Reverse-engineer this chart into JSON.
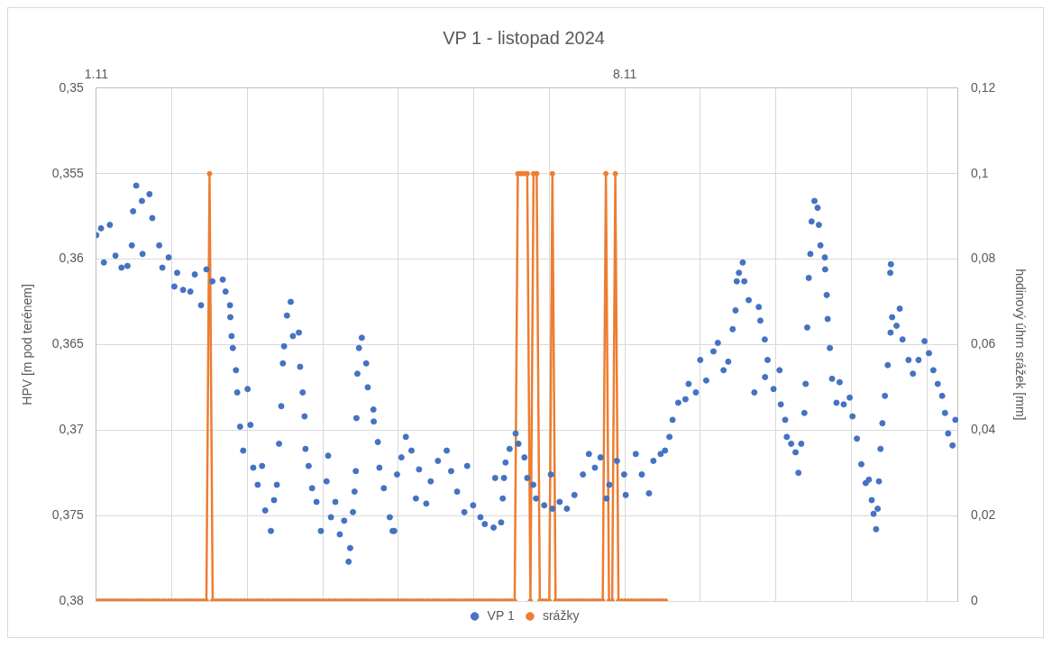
{
  "chart_data": {
    "type": "scatter",
    "title": "VP 1 - listopad 2024",
    "ylabel": "HPV [m pod terénem]",
    "y2label": "hodinový úhrn srážek [mm]",
    "xlim": [
      "2024-11-01T00:00",
      "2024-11-12T10:00"
    ],
    "xticks": [
      {
        "value": "2024-11-01",
        "label": "1.11"
      },
      {
        "value": "2024-11-02",
        "label": null
      },
      {
        "value": "2024-11-03",
        "label": null
      },
      {
        "value": "2024-11-04",
        "label": null
      },
      {
        "value": "2024-11-05",
        "label": null
      },
      {
        "value": "2024-11-06",
        "label": null
      },
      {
        "value": "2024-11-07",
        "label": null
      },
      {
        "value": "2024-11-08",
        "label": "8.11"
      },
      {
        "value": "2024-11-09",
        "label": null
      },
      {
        "value": "2024-11-10",
        "label": null
      },
      {
        "value": "2024-11-11",
        "label": null
      },
      {
        "value": "2024-11-12",
        "label": null
      }
    ],
    "ylim": [
      0.38,
      0.35
    ],
    "yticks": [
      {
        "value": 0.35,
        "label": "0,35"
      },
      {
        "value": 0.355,
        "label": "0,355"
      },
      {
        "value": 0.36,
        "label": "0,36"
      },
      {
        "value": 0.365,
        "label": "0,365"
      },
      {
        "value": 0.37,
        "label": "0,37"
      },
      {
        "value": 0.375,
        "label": "0,375"
      },
      {
        "value": 0.38,
        "label": "0,38"
      }
    ],
    "y2lim": [
      0,
      0.12
    ],
    "y2ticks": [
      0,
      {
        "value": 0.02,
        "label": "0,02"
      },
      {
        "value": 0.04,
        "label": "0,04"
      },
      {
        "value": 0.06,
        "label": "0,06"
      },
      {
        "value": 0.08,
        "label": "0,08"
      },
      {
        "value": 0.1,
        "label": "0,1"
      },
      {
        "value": 0.12,
        "label": "0,12"
      }
    ],
    "grid": true,
    "legend": "bottom",
    "series": [
      {
        "name": "VP 1",
        "type": "scatter",
        "color": "#4472c4",
        "marker": "circle",
        "x": [
          "2024-11-01T00:00",
          "2024-11-01T01:30",
          "2024-11-01T02:24",
          "2024-11-01T04:18",
          "2024-11-01T06:06",
          "2024-11-01T08:00",
          "2024-11-01T09:54",
          "2024-11-01T11:18",
          "2024-11-01T11:42",
          "2024-11-01T12:42",
          "2024-11-01T14:30",
          "2024-11-01T14:42",
          "2024-11-01T16:54",
          "2024-11-01T17:48",
          "2024-11-01T20:00",
          "2024-11-01T21:00",
          "2024-11-01T23:00",
          "2024-11-02T00:48",
          "2024-11-02T01:42",
          "2024-11-02T03:36",
          "2024-11-02T05:54",
          "2024-11-02T07:18",
          "2024-11-02T09:18",
          "2024-11-02T11:00",
          "2024-11-02T12:54",
          "2024-11-02T16:12",
          "2024-11-02T17:06",
          "2024-11-02T18:30",
          "2024-11-02T18:36",
          "2024-11-02T19:00",
          "2024-11-02T19:24",
          "2024-11-02T20:24",
          "2024-11-02T20:48",
          "2024-11-02T21:42",
          "2024-11-02T22:42",
          "2024-11-03T00:06",
          "2024-11-03T01:00",
          "2024-11-03T01:54",
          "2024-11-03T03:18",
          "2024-11-03T04:42",
          "2024-11-03T05:42",
          "2024-11-03T07:30",
          "2024-11-03T08:30",
          "2024-11-03T09:24",
          "2024-11-03T10:06",
          "2024-11-03T10:48",
          "2024-11-03T11:18",
          "2024-11-03T11:42",
          "2024-11-03T12:36",
          "2024-11-03T13:48",
          "2024-11-03T14:30",
          "2024-11-03T16:24",
          "2024-11-03T16:48",
          "2024-11-03T17:36",
          "2024-11-03T18:12",
          "2024-11-03T18:30",
          "2024-11-03T19:30",
          "2024-11-03T20:36",
          "2024-11-03T22:00",
          "2024-11-03T23:24",
          "2024-11-04T01:12",
          "2024-11-04T01:42",
          "2024-11-04T02:36",
          "2024-11-04T04:00",
          "2024-11-04T05:24",
          "2024-11-04T06:48",
          "2024-11-04T08:12",
          "2024-11-04T08:42",
          "2024-11-04T09:36",
          "2024-11-04T10:06",
          "2024-11-04T10:30",
          "2024-11-04T10:42",
          "2024-11-04T11:00",
          "2024-11-04T11:30",
          "2024-11-04T12:24",
          "2024-11-04T13:48",
          "2024-11-04T14:18",
          "2024-11-04T16:06",
          "2024-11-04T16:12",
          "2024-11-04T17:30",
          "2024-11-04T18:00",
          "2024-11-04T19:24",
          "2024-11-04T21:18",
          "2024-11-04T22:12",
          "2024-11-04T22:42",
          "2024-11-04T23:36",
          "2024-11-05T01:00",
          "2024-11-05T02:24",
          "2024-11-05T04:12",
          "2024-11-05T05:36",
          "2024-11-05T06:36",
          "2024-11-05T08:54",
          "2024-11-05T10:18",
          "2024-11-05T12:36",
          "2024-11-05T15:24",
          "2024-11-05T16:48",
          "2024-11-05T18:42",
          "2024-11-05T21:00",
          "2024-11-05T21:54",
          "2024-11-05T23:48",
          "2024-11-06T02:06",
          "2024-11-06T03:30",
          "2024-11-06T06:18",
          "2024-11-06T06:48",
          "2024-11-06T08:42",
          "2024-11-06T09:12",
          "2024-11-06T09:36",
          "2024-11-06T10:06",
          "2024-11-06T11:24",
          "2024-11-06T13:18",
          "2024-11-06T14:12",
          "2024-11-06T16:06",
          "2024-11-06T17:00",
          "2024-11-06T18:54",
          "2024-11-06T19:48",
          "2024-11-06T22:24",
          "2024-11-07T00:30",
          "2024-11-07T01:00",
          "2024-11-07T03:18",
          "2024-11-07T05:36",
          "2024-11-07T08:00",
          "2024-11-07T10:42",
          "2024-11-07T12:36",
          "2024-11-07T14:30",
          "2024-11-07T16:18",
          "2024-11-07T18:12",
          "2024-11-07T19:06",
          "2024-11-07T21:30",
          "2024-11-07T23:48",
          "2024-11-08T00:18",
          "2024-11-08T03:30",
          "2024-11-08T05:24",
          "2024-11-08T07:42",
          "2024-11-08T09:06",
          "2024-11-08T11:24",
          "2024-11-08T12:48",
          "2024-11-08T14:12",
          "2024-11-08T15:12",
          "2024-11-08T17:00",
          "2024-11-08T19:18",
          "2024-11-08T20:18",
          "2024-11-08T22:36",
          "2024-11-09T00:00",
          "2024-11-09T01:54",
          "2024-11-09T04:12",
          "2024-11-09T05:36",
          "2024-11-09T07:24",
          "2024-11-09T08:54",
          "2024-11-09T10:18",
          "2024-11-09T11:12",
          "2024-11-09T11:36",
          "2024-11-09T12:18",
          "2024-11-09T13:30",
          "2024-11-09T14:00",
          "2024-11-09T15:24",
          "2024-11-09T17:12",
          "2024-11-09T18:36",
          "2024-11-09T19:06",
          "2024-11-09T20:30",
          "2024-11-09T20:36",
          "2024-11-09T21:24",
          "2024-11-09T23:18",
          "2024-11-10T01:12",
          "2024-11-10T01:36",
          "2024-11-10T03:00",
          "2024-11-10T03:30",
          "2024-11-10T04:54",
          "2024-11-10T06:18",
          "2024-11-10T07:12",
          "2024-11-10T08:06",
          "2024-11-10T09:06",
          "2024-11-10T09:30",
          "2024-11-10T10:00",
          "2024-11-10T10:30",
          "2024-11-10T11:00",
          "2024-11-10T11:24",
          "2024-11-10T12:18",
          "2024-11-10T13:18",
          "2024-11-10T13:42",
          "2024-11-10T14:12",
          "2024-11-10T15:36",
          "2024-11-10T15:42",
          "2024-11-10T16:12",
          "2024-11-10T16:30",
          "2024-11-10T17:12",
          "2024-11-10T17:54",
          "2024-11-10T19:18",
          "2024-11-10T20:18",
          "2024-11-10T21:36",
          "2024-11-10T23:30",
          "2024-11-11T00:24",
          "2024-11-11T01:48",
          "2024-11-11T03:12",
          "2024-11-11T04:36",
          "2024-11-11T05:36",
          "2024-11-11T06:30",
          "2024-11-11T07:06",
          "2024-11-11T07:54",
          "2024-11-11T08:24",
          "2024-11-11T08:48",
          "2024-11-11T09:18",
          "2024-11-11T09:54",
          "2024-11-11T10:42",
          "2024-11-11T11:36",
          "2024-11-11T12:24",
          "2024-11-11T12:36",
          "2024-11-11T12:30",
          "2024-11-11T13:00",
          "2024-11-11T14:24",
          "2024-11-11T15:24",
          "2024-11-11T16:18",
          "2024-11-11T18:12",
          "2024-11-11T19:36",
          "2024-11-11T21:24",
          "2024-11-11T23:18",
          "2024-11-12T00:42",
          "2024-11-12T02:06",
          "2024-11-12T03:30",
          "2024-11-12T04:54",
          "2024-11-12T05:48",
          "2024-11-12T06:48",
          "2024-11-12T08:12",
          "2024-11-12T09:06"
        ],
        "values": [
          0.3586,
          0.3582,
          0.3602,
          0.358,
          0.3598,
          0.3605,
          0.3604,
          0.3592,
          0.3572,
          0.3557,
          0.3566,
          0.3597,
          0.3562,
          0.3576,
          0.3592,
          0.3605,
          0.3599,
          0.3616,
          0.3608,
          0.3618,
          0.3619,
          0.3609,
          0.3627,
          0.3606,
          0.3613,
          0.3612,
          0.3619,
          0.3627,
          0.3634,
          0.3645,
          0.3652,
          0.3665,
          0.3678,
          0.3698,
          0.3712,
          0.3676,
          0.3697,
          0.3722,
          0.3732,
          0.3721,
          0.3747,
          0.3759,
          0.3741,
          0.3732,
          0.3708,
          0.3686,
          0.3661,
          0.3651,
          0.3633,
          0.3625,
          0.3645,
          0.3643,
          0.3663,
          0.3678,
          0.3692,
          0.3711,
          0.3721,
          0.3734,
          0.3742,
          0.3759,
          0.373,
          0.3715,
          0.3751,
          0.3742,
          0.3761,
          0.3753,
          0.3777,
          0.3769,
          0.3748,
          0.3736,
          0.3724,
          0.3693,
          0.3667,
          0.3652,
          0.3646,
          0.3661,
          0.3675,
          0.3688,
          0.3695,
          0.3707,
          0.3722,
          0.3734,
          0.3751,
          0.3759,
          0.3759,
          0.3726,
          0.3716,
          0.3704,
          0.3712,
          0.374,
          0.3723,
          0.3743,
          0.373,
          0.3718,
          0.3712,
          0.3724,
          0.3736,
          0.3748,
          0.3721,
          0.3744,
          0.3751,
          0.3755,
          0.3757,
          0.3728,
          0.3754,
          0.374,
          0.3728,
          0.3719,
          0.3711,
          0.3702,
          0.3708,
          0.3716,
          0.3728,
          0.3732,
          0.374,
          0.3744,
          0.3726,
          0.3746,
          0.3742,
          0.3746,
          0.3738,
          0.3726,
          0.3714,
          0.3722,
          0.3716,
          0.374,
          0.3732,
          0.3718,
          0.3726,
          0.3738,
          0.3714,
          0.3726,
          0.3737,
          0.3718,
          0.3714,
          0.3712,
          0.3704,
          0.3694,
          0.3684,
          0.3682,
          0.3673,
          0.3678,
          0.3659,
          0.3671,
          0.3654,
          0.3649,
          0.3665,
          0.366,
          0.3641,
          0.363,
          0.3613,
          0.3608,
          0.3602,
          0.3613,
          0.3624,
          0.3678,
          0.3628,
          0.3636,
          0.3647,
          0.3669,
          0.3659,
          0.3676,
          0.3665,
          0.3685,
          0.3694,
          0.3704,
          0.3708,
          0.3713,
          0.3725,
          0.3708,
          0.369,
          0.3673,
          0.364,
          0.3611,
          0.3597,
          0.3578,
          0.3566,
          0.357,
          0.358,
          0.3592,
          0.3599,
          0.3606,
          0.3621,
          0.3635,
          0.3652,
          0.367,
          0.3684,
          0.3672,
          0.3685,
          0.3681,
          0.3692,
          0.3705,
          0.372,
          0.3731,
          0.3729,
          0.3741,
          0.3749,
          0.3758,
          0.3746,
          0.373,
          0.3711,
          0.3696,
          0.368,
          0.3662,
          0.3608,
          0.3603,
          0.3643,
          0.3634,
          0.3639,
          0.3629,
          0.3647,
          0.3659,
          0.3667,
          0.3659,
          0.3648,
          0.3655,
          0.3665,
          0.3673,
          0.368,
          0.369,
          0.3702,
          0.3709,
          0.3694
        ]
      },
      {
        "name": "srážky",
        "type": "line",
        "axis": "y2",
        "color": "#ed7d31",
        "marker": "circle",
        "line_style": "solid",
        "x": [
          "2024-11-01T00:00",
          "2024-11-01T01:00",
          "2024-11-01T02:00",
          "2024-11-01T03:00",
          "2024-11-01T04:00",
          "2024-11-01T05:00",
          "2024-11-01T06:00",
          "2024-11-01T07:00",
          "2024-11-01T08:00",
          "2024-11-01T09:00",
          "2024-11-01T10:00",
          "2024-11-01T11:00",
          "2024-11-01T12:00",
          "2024-11-01T13:00",
          "2024-11-01T14:00",
          "2024-11-01T15:00",
          "2024-11-01T16:00",
          "2024-11-01T17:00",
          "2024-11-01T18:00",
          "2024-11-01T19:00",
          "2024-11-01T20:00",
          "2024-11-01T21:00",
          "2024-11-01T22:00",
          "2024-11-01T23:00",
          "2024-11-02T00:00",
          "2024-11-02T01:00",
          "2024-11-02T02:00",
          "2024-11-02T03:00",
          "2024-11-02T04:00",
          "2024-11-02T05:00",
          "2024-11-02T06:00",
          "2024-11-02T07:00",
          "2024-11-02T08:00",
          "2024-11-02T09:00",
          "2024-11-02T10:00",
          "2024-11-02T11:00",
          "2024-11-02T12:00",
          "2024-11-02T13:00",
          "2024-11-02T14:00",
          "2024-11-02T15:00",
          "2024-11-02T16:00",
          "2024-11-02T17:00",
          "2024-11-02T18:00",
          "2024-11-02T19:00",
          "2024-11-02T20:00",
          "2024-11-02T21:00",
          "2024-11-02T22:00",
          "2024-11-02T23:00",
          "2024-11-03T00:00",
          "2024-11-03T01:00",
          "2024-11-03T02:00",
          "2024-11-03T03:00",
          "2024-11-03T04:00",
          "2024-11-03T05:00",
          "2024-11-03T06:00",
          "2024-11-03T07:00",
          "2024-11-03T08:00",
          "2024-11-03T09:00",
          "2024-11-03T10:00",
          "2024-11-03T11:00",
          "2024-11-03T12:00",
          "2024-11-03T13:00",
          "2024-11-03T14:00",
          "2024-11-03T15:00",
          "2024-11-03T16:00",
          "2024-11-03T17:00",
          "2024-11-03T18:00",
          "2024-11-03T19:00",
          "2024-11-03T20:00",
          "2024-11-03T21:00",
          "2024-11-03T22:00",
          "2024-11-03T23:00",
          "2024-11-04T00:00",
          "2024-11-04T01:00",
          "2024-11-04T02:00",
          "2024-11-04T03:00",
          "2024-11-04T04:00",
          "2024-11-04T05:00",
          "2024-11-04T06:00",
          "2024-11-04T07:00",
          "2024-11-04T08:00",
          "2024-11-04T09:00",
          "2024-11-04T10:00",
          "2024-11-04T11:00",
          "2024-11-04T12:00",
          "2024-11-04T13:00",
          "2024-11-04T14:00",
          "2024-11-04T15:00",
          "2024-11-04T16:00",
          "2024-11-04T17:00",
          "2024-11-04T18:00",
          "2024-11-04T19:00",
          "2024-11-04T20:00",
          "2024-11-04T21:00",
          "2024-11-04T22:00",
          "2024-11-04T23:00",
          "2024-11-05T00:00",
          "2024-11-05T01:00",
          "2024-11-05T02:00",
          "2024-11-05T03:00",
          "2024-11-05T04:00",
          "2024-11-05T05:00",
          "2024-11-05T06:00",
          "2024-11-05T07:00",
          "2024-11-05T08:00",
          "2024-11-05T09:00",
          "2024-11-05T10:00",
          "2024-11-05T11:00",
          "2024-11-05T12:00",
          "2024-11-05T13:00",
          "2024-11-05T14:00",
          "2024-11-05T15:00",
          "2024-11-05T16:00",
          "2024-11-05T17:00",
          "2024-11-05T18:00",
          "2024-11-05T19:00",
          "2024-11-05T20:00",
          "2024-11-05T21:00",
          "2024-11-05T22:00",
          "2024-11-05T23:00",
          "2024-11-06T00:00",
          "2024-11-06T01:00",
          "2024-11-06T02:00",
          "2024-11-06T03:00",
          "2024-11-06T04:00",
          "2024-11-06T05:00",
          "2024-11-06T06:00",
          "2024-11-06T07:00",
          "2024-11-06T08:00",
          "2024-11-06T09:00",
          "2024-11-06T10:00",
          "2024-11-06T11:00",
          "2024-11-06T12:00",
          "2024-11-06T13:00",
          "2024-11-06T14:00",
          "2024-11-06T15:00",
          "2024-11-06T16:00",
          "2024-11-06T17:00",
          "2024-11-06T18:00",
          "2024-11-06T19:00",
          "2024-11-06T20:00",
          "2024-11-06T21:00",
          "2024-11-06T22:00",
          "2024-11-06T23:00",
          "2024-11-07T00:00",
          "2024-11-07T01:00",
          "2024-11-07T02:00",
          "2024-11-07T03:00",
          "2024-11-07T04:00",
          "2024-11-07T05:00",
          "2024-11-07T06:00",
          "2024-11-07T07:00",
          "2024-11-07T08:00",
          "2024-11-07T09:00",
          "2024-11-07T10:00",
          "2024-11-07T11:00",
          "2024-11-07T12:00",
          "2024-11-07T13:00",
          "2024-11-07T14:00",
          "2024-11-07T15:00",
          "2024-11-07T16:00",
          "2024-11-07T17:00",
          "2024-11-07T18:00",
          "2024-11-07T19:00",
          "2024-11-07T20:00",
          "2024-11-07T21:00",
          "2024-11-07T22:00",
          "2024-11-07T23:00",
          "2024-11-08T00:00",
          "2024-11-08T01:00",
          "2024-11-08T02:00",
          "2024-11-08T03:00",
          "2024-11-08T04:00",
          "2024-11-08T05:00",
          "2024-11-08T06:00",
          "2024-11-08T07:00",
          "2024-11-08T08:00",
          "2024-11-08T09:00",
          "2024-11-08T10:00",
          "2024-11-08T11:00",
          "2024-11-08T12:00",
          "2024-11-08T13:00"
        ],
        "values": [
          0,
          0,
          0,
          0,
          0,
          0,
          0,
          0,
          0,
          0,
          0,
          0,
          0,
          0,
          0,
          0,
          0,
          0,
          0,
          0,
          0,
          0,
          0,
          0,
          0,
          0,
          0,
          0,
          0,
          0,
          0,
          0,
          0,
          0,
          0,
          0,
          0.1,
          0,
          0,
          0,
          0,
          0,
          0,
          0,
          0,
          0,
          0,
          0,
          0,
          0,
          0,
          0,
          0,
          0,
          0,
          0,
          0,
          0,
          0,
          0,
          0,
          0,
          0,
          0,
          0,
          0,
          0,
          0,
          0,
          0,
          0,
          0,
          0,
          0,
          0,
          0,
          0,
          0,
          0,
          0,
          0,
          0,
          0,
          0,
          0,
          0,
          0,
          0,
          0,
          0,
          0,
          0,
          0,
          0,
          0,
          0,
          0,
          0,
          0,
          0,
          0,
          0,
          0,
          0,
          0,
          0,
          0,
          0,
          0,
          0,
          0,
          0,
          0,
          0,
          0,
          0,
          0,
          0,
          0,
          0,
          0,
          0,
          0,
          0,
          0,
          0,
          0,
          0,
          0,
          0,
          0,
          0,
          0,
          0,
          0.1,
          0.1,
          0.1,
          0.1,
          0,
          0.1,
          0.1,
          0,
          0,
          0,
          0,
          0.1,
          0,
          0,
          0,
          0,
          0,
          0,
          0,
          0,
          0,
          0,
          0,
          0,
          0,
          0,
          0,
          0,
          0.1,
          0,
          0,
          0.1,
          0,
          0,
          0,
          0,
          0,
          0,
          0,
          0,
          0,
          0,
          0,
          0,
          0,
          0,
          0,
          0
        ]
      }
    ]
  }
}
